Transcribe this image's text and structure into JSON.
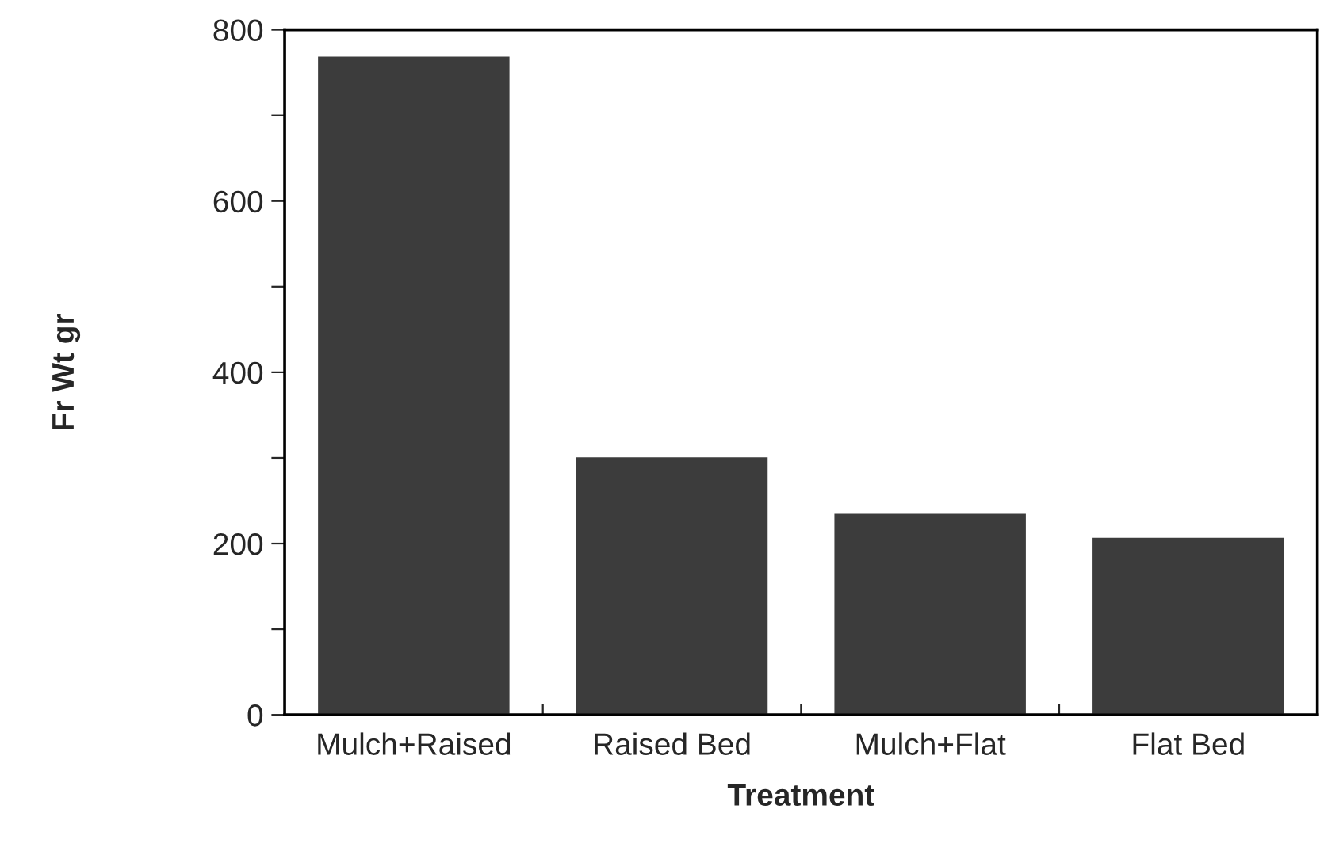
{
  "chart_data": {
    "type": "bar",
    "xlabel": "Treatment",
    "ylabel": "Fr Wt gr",
    "categories": [
      "Mulch+Raised",
      "Raised Bed",
      "Mulch+Flat",
      "Flat Bed"
    ],
    "values": [
      770,
      302,
      236,
      208
    ],
    "color": "#3c3c3c",
    "ylim": [
      0,
      800
    ],
    "yticks": [
      0,
      {
        "value": 100,
        "label": null
      },
      200,
      {
        "value": 300,
        "label": null
      },
      400,
      {
        "value": 500,
        "label": null
      },
      600,
      {
        "value": 700,
        "label": null
      },
      800
    ],
    "grid": false
  }
}
